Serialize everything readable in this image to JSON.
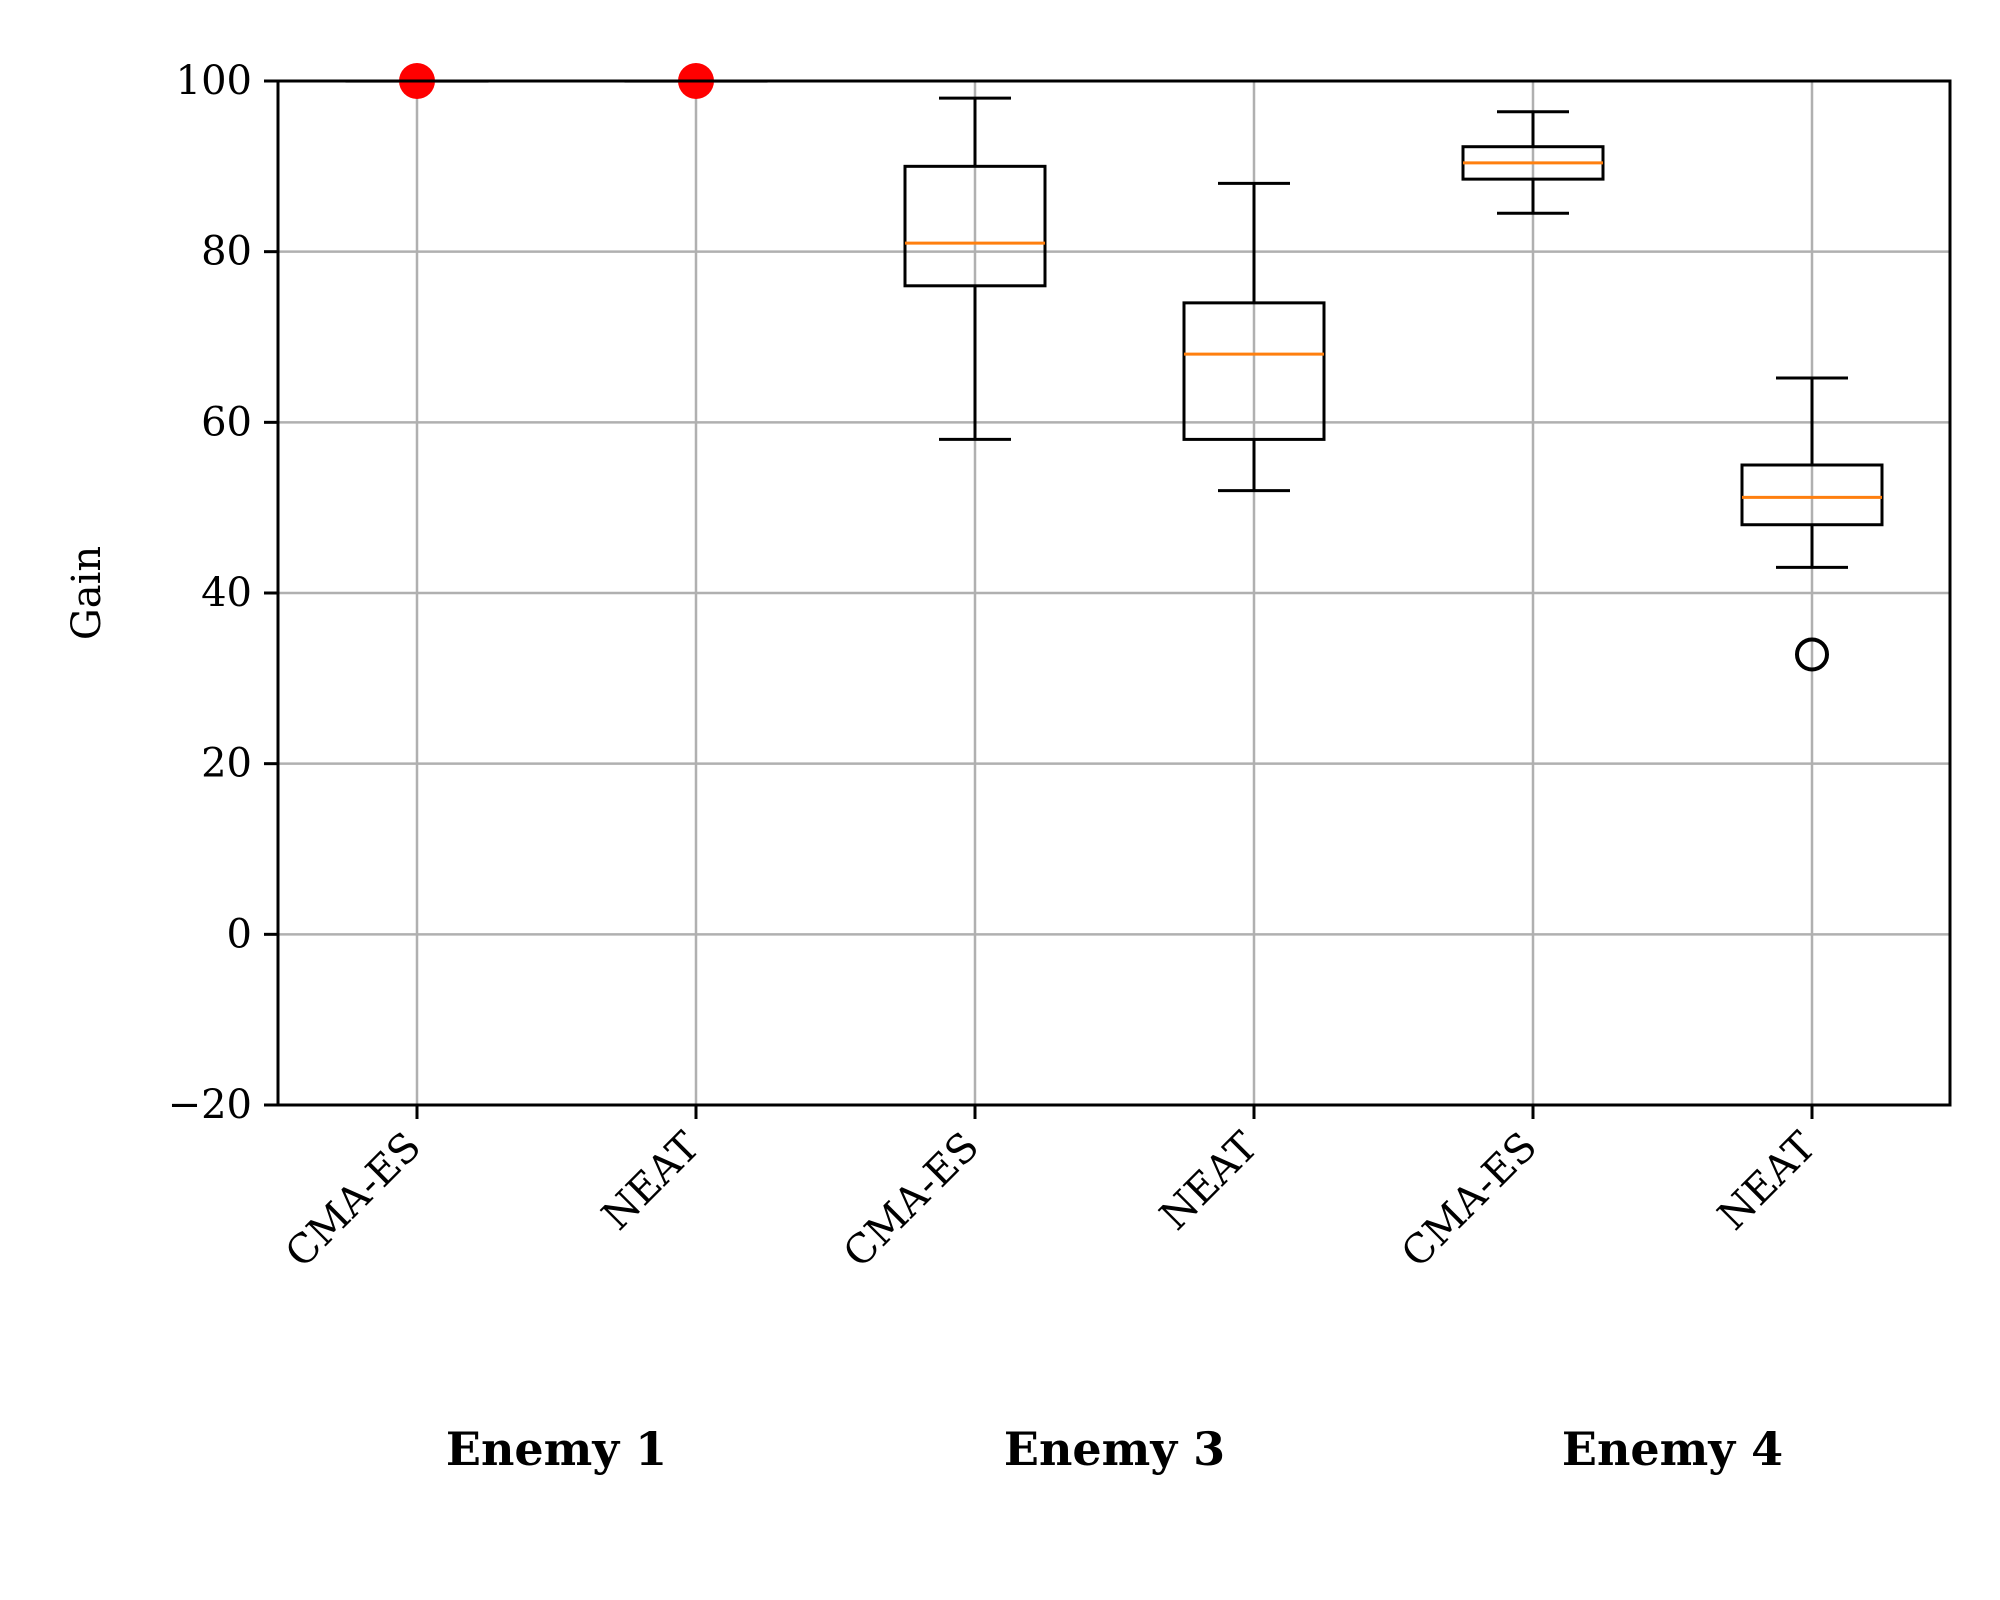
{
  "chart_data": {
    "type": "box",
    "ylabel": "Gain",
    "ylim": [
      -20,
      100
    ],
    "yticks": [
      -20,
      0,
      20,
      40,
      60,
      80,
      100
    ],
    "ytick_labels": [
      "−20",
      "0",
      "20",
      "40",
      "60",
      "80",
      "100"
    ],
    "grid": true,
    "categories": [
      "CMA-ES",
      "NEAT",
      "CMA-ES",
      "NEAT",
      "CMA-ES",
      "NEAT"
    ],
    "groups": [
      {
        "label": "Enemy 1",
        "members": [
          0,
          1
        ]
      },
      {
        "label": "Enemy 3",
        "members": [
          2,
          3
        ]
      },
      {
        "label": "Enemy 4",
        "members": [
          4,
          5
        ]
      }
    ],
    "boxes": [
      {
        "category": "CMA-ES",
        "whisker_low": 100,
        "q1": 100,
        "median": 100,
        "q3": 100,
        "whisker_high": 100,
        "outliers": [],
        "mean_marker": 100
      },
      {
        "category": "NEAT",
        "whisker_low": 100,
        "q1": 100,
        "median": 100,
        "q3": 100,
        "whisker_high": 100,
        "outliers": [],
        "mean_marker": 100
      },
      {
        "category": "CMA-ES",
        "whisker_low": 58,
        "q1": 76,
        "median": 81,
        "q3": 90,
        "whisker_high": 98,
        "outliers": []
      },
      {
        "category": "NEAT",
        "whisker_low": 52,
        "q1": 58,
        "median": 68,
        "q3": 74,
        "whisker_high": 88,
        "outliers": []
      },
      {
        "category": "CMA-ES",
        "whisker_low": 84.5,
        "q1": 88.5,
        "median": 90.4,
        "q3": 92.3,
        "whisker_high": 96.4,
        "outliers": []
      },
      {
        "category": "NEAT",
        "whisker_low": 43,
        "q1": 48,
        "median": 51.2,
        "q3": 55,
        "whisker_high": 65.2,
        "outliers": [
          32.8
        ]
      }
    ],
    "colors": {
      "box": "#000000",
      "median": "#ff7f0e",
      "grid": "#b0b0b0",
      "mean_marker": "#ff0000"
    }
  }
}
